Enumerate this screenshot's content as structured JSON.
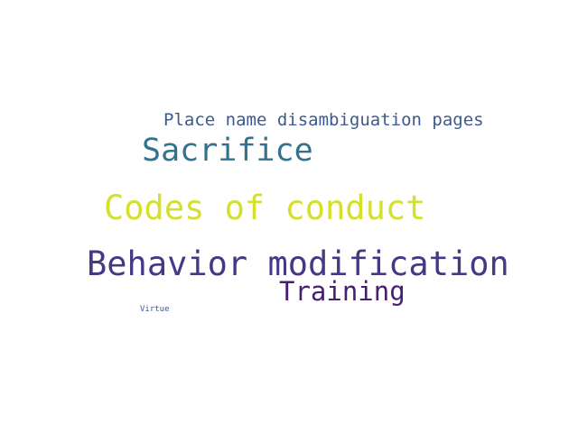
{
  "words": [
    {
      "text": "Place name disambiguation pages",
      "color": "#3e5a8c"
    },
    {
      "text": "Sacrifice",
      "color": "#31738e"
    },
    {
      "text": "Codes of conduct",
      "color": "#d4e02a"
    },
    {
      "text": "Behavior modification",
      "color": "#443a83"
    },
    {
      "text": "Training",
      "color": "#481f70"
    },
    {
      "text": "Virtue",
      "color": "#3e5a8c"
    }
  ]
}
